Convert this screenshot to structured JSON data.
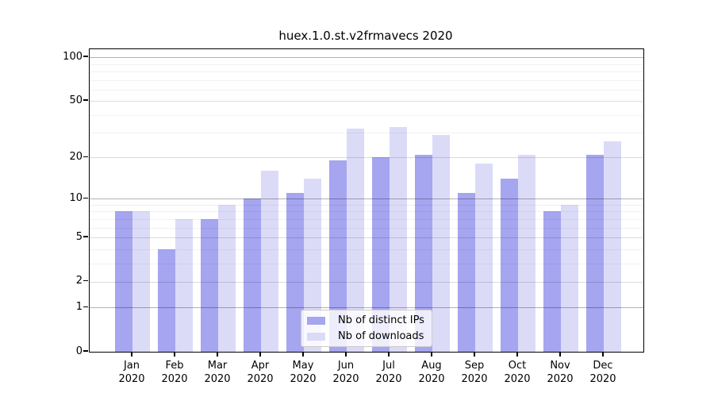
{
  "title": "huex.1.0.st.v2frmavecs 2020",
  "colors": {
    "ips_bar": "#a5a5f0",
    "downloads_bar": "#dbdbf8",
    "axis": "#000000",
    "grid_minor": "rgba(0,0,0,0.055)",
    "grid_major": "rgba(0,0,0,0.14)",
    "grid_decade": "rgba(0,0,0,0.30)"
  },
  "legend": {
    "items": [
      {
        "label": "Nb of distinct IPs",
        "color": "#a5a5f0"
      },
      {
        "label": "Nb of downloads",
        "color": "#dbdbf8"
      }
    ]
  },
  "chart_data": {
    "type": "bar",
    "title": "huex.1.0.st.v2frmavecs 2020",
    "categories": [
      "Jan",
      "Feb",
      "Mar",
      "Apr",
      "May",
      "Jun",
      "Jul",
      "Aug",
      "Sep",
      "Oct",
      "Nov",
      "Dec"
    ],
    "x_tick_second_line": "2020",
    "series": [
      {
        "name": "Nb of distinct IPs",
        "color": "#a5a5f0",
        "values": [
          8,
          4,
          7,
          10,
          11,
          19,
          20,
          21,
          11,
          14,
          8,
          21
        ]
      },
      {
        "name": "Nb of downloads",
        "color": "#dbdbf8",
        "values": [
          8,
          7,
          9,
          16,
          14,
          32,
          33,
          29,
          18,
          21,
          9,
          26
        ]
      }
    ],
    "yscale": "log10(1+v)",
    "ylim": [
      0,
      115
    ],
    "y_major_ticks": [
      0,
      1,
      2,
      5,
      10,
      20,
      50,
      100
    ],
    "y_minor_ticks": [
      3,
      4,
      6,
      7,
      8,
      9,
      30,
      40,
      60,
      70,
      80,
      90
    ],
    "grid": true,
    "legend_position": "lower center"
  }
}
